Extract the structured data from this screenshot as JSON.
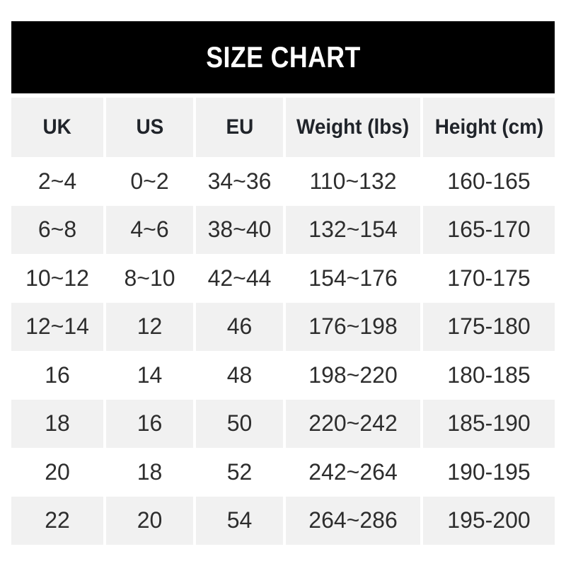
{
  "title": "SIZE CHART",
  "chart_data": {
    "type": "table",
    "title": "SIZE CHART",
    "columns": [
      "UK",
      "US",
      "EU",
      "Weight (lbs)",
      "Height (cm)"
    ],
    "rows": [
      [
        "2~4",
        "0~2",
        "34~36",
        "110~132",
        "160-165"
      ],
      [
        "6~8",
        "4~6",
        "38~40",
        "132~154",
        "165-170"
      ],
      [
        "10~12",
        "8~10",
        "42~44",
        "154~176",
        "170-175"
      ],
      [
        "12~14",
        "12",
        "46",
        "176~198",
        "175-180"
      ],
      [
        "16",
        "14",
        "48",
        "198~220",
        "180-185"
      ],
      [
        "18",
        "16",
        "50",
        "220~242",
        "185-190"
      ],
      [
        "20",
        "18",
        "52",
        "242~264",
        "190-195"
      ],
      [
        "22",
        "20",
        "54",
        "264~286",
        "195-200"
      ]
    ],
    "layout": {
      "legend": "none",
      "grid": "striped rows",
      "stripe_pattern": "header gray; data rows alternate white, gray starting with white",
      "column_dividers": "white gaps visible on gray rows only"
    }
  },
  "colors": {
    "page_bg": "#ffffff",
    "banner_bg": "#000000",
    "banner_text": "#ffffff",
    "stripe_bg": "#f1f1f1",
    "row_bg": "#ffffff",
    "header_text": "#20242a",
    "cell_text": "#2d2d2d"
  }
}
